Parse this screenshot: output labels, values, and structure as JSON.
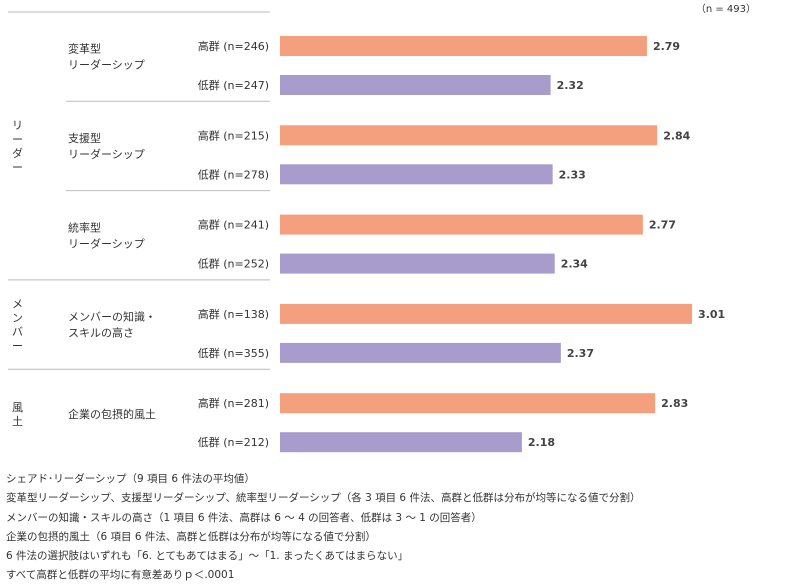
{
  "n_label": "（n = 493）",
  "colors": {
    "high": "#f4a07f",
    "low": "#a79ccc",
    "rule": "#bbbbbb",
    "text": "#333333",
    "value": "#444444"
  },
  "chart_data": {
    "type": "bar",
    "orientation": "horizontal",
    "xlim": [
      1,
      3.1
    ],
    "grid": false,
    "groups": [
      {
        "name_lines": [
          "リ",
          "ー",
          "ダ",
          "ー"
        ],
        "items": [
          {
            "name_lines": [
              "変革型",
              "リーダーシップ"
            ],
            "bars": [
              {
                "label": "高群 (n=246)",
                "level": "high",
                "value": 2.79
              },
              {
                "label": "低群 (n=247)",
                "level": "low",
                "value": 2.32
              }
            ]
          },
          {
            "name_lines": [
              "支援型",
              "リーダーシップ"
            ],
            "bars": [
              {
                "label": "高群 (n=215)",
                "level": "high",
                "value": 2.84
              },
              {
                "label": "低群 (n=278)",
                "level": "low",
                "value": 2.33
              }
            ]
          },
          {
            "name_lines": [
              "統率型",
              "リーダーシップ"
            ],
            "bars": [
              {
                "label": "高群 (n=241)",
                "level": "high",
                "value": 2.77
              },
              {
                "label": "低群 (n=252)",
                "level": "low",
                "value": 2.34
              }
            ]
          }
        ]
      },
      {
        "name_lines": [
          "メ",
          "ン",
          "バ",
          "ー"
        ],
        "items": [
          {
            "name_lines": [
              "メンバーの知識・",
              "スキルの高さ"
            ],
            "bars": [
              {
                "label": "高群 (n=138)",
                "level": "high",
                "value": 3.01
              },
              {
                "label": "低群 (n=355)",
                "level": "low",
                "value": 2.37
              }
            ]
          }
        ]
      },
      {
        "name_lines": [
          "風",
          "土"
        ],
        "items": [
          {
            "name_lines": [
              "企業の包摂的風土"
            ],
            "bars": [
              {
                "label": "高群 (n=281)",
                "level": "high",
                "value": 2.83
              },
              {
                "label": "低群 (n=212)",
                "level": "low",
                "value": 2.18
              }
            ]
          }
        ]
      }
    ]
  },
  "notes": [
    "シェアド･リーダーシップ（9 項目 6 件法の平均値）",
    "変革型リーダーシップ、支援型リーダーシップ、統率型リーダーシップ（各 3 項目 6 件法、高群と低群は分布が均等になる値で分割）",
    "メンバーの知識・スキルの高さ（1 項目 6 件法、高群は 6 ～ 4 の回答者、低群は 3 ～ 1 の回答者）",
    "企業の包摂的風土（6 項目 6 件法、高群と低群は分布が均等になる値で分割）",
    "6 件法の選択肢はいずれも「6. とてもあてはまる」～「1. まったくあてはまらない」",
    "すべて高群と低群の平均に有意差ありｐ＜.0001"
  ]
}
